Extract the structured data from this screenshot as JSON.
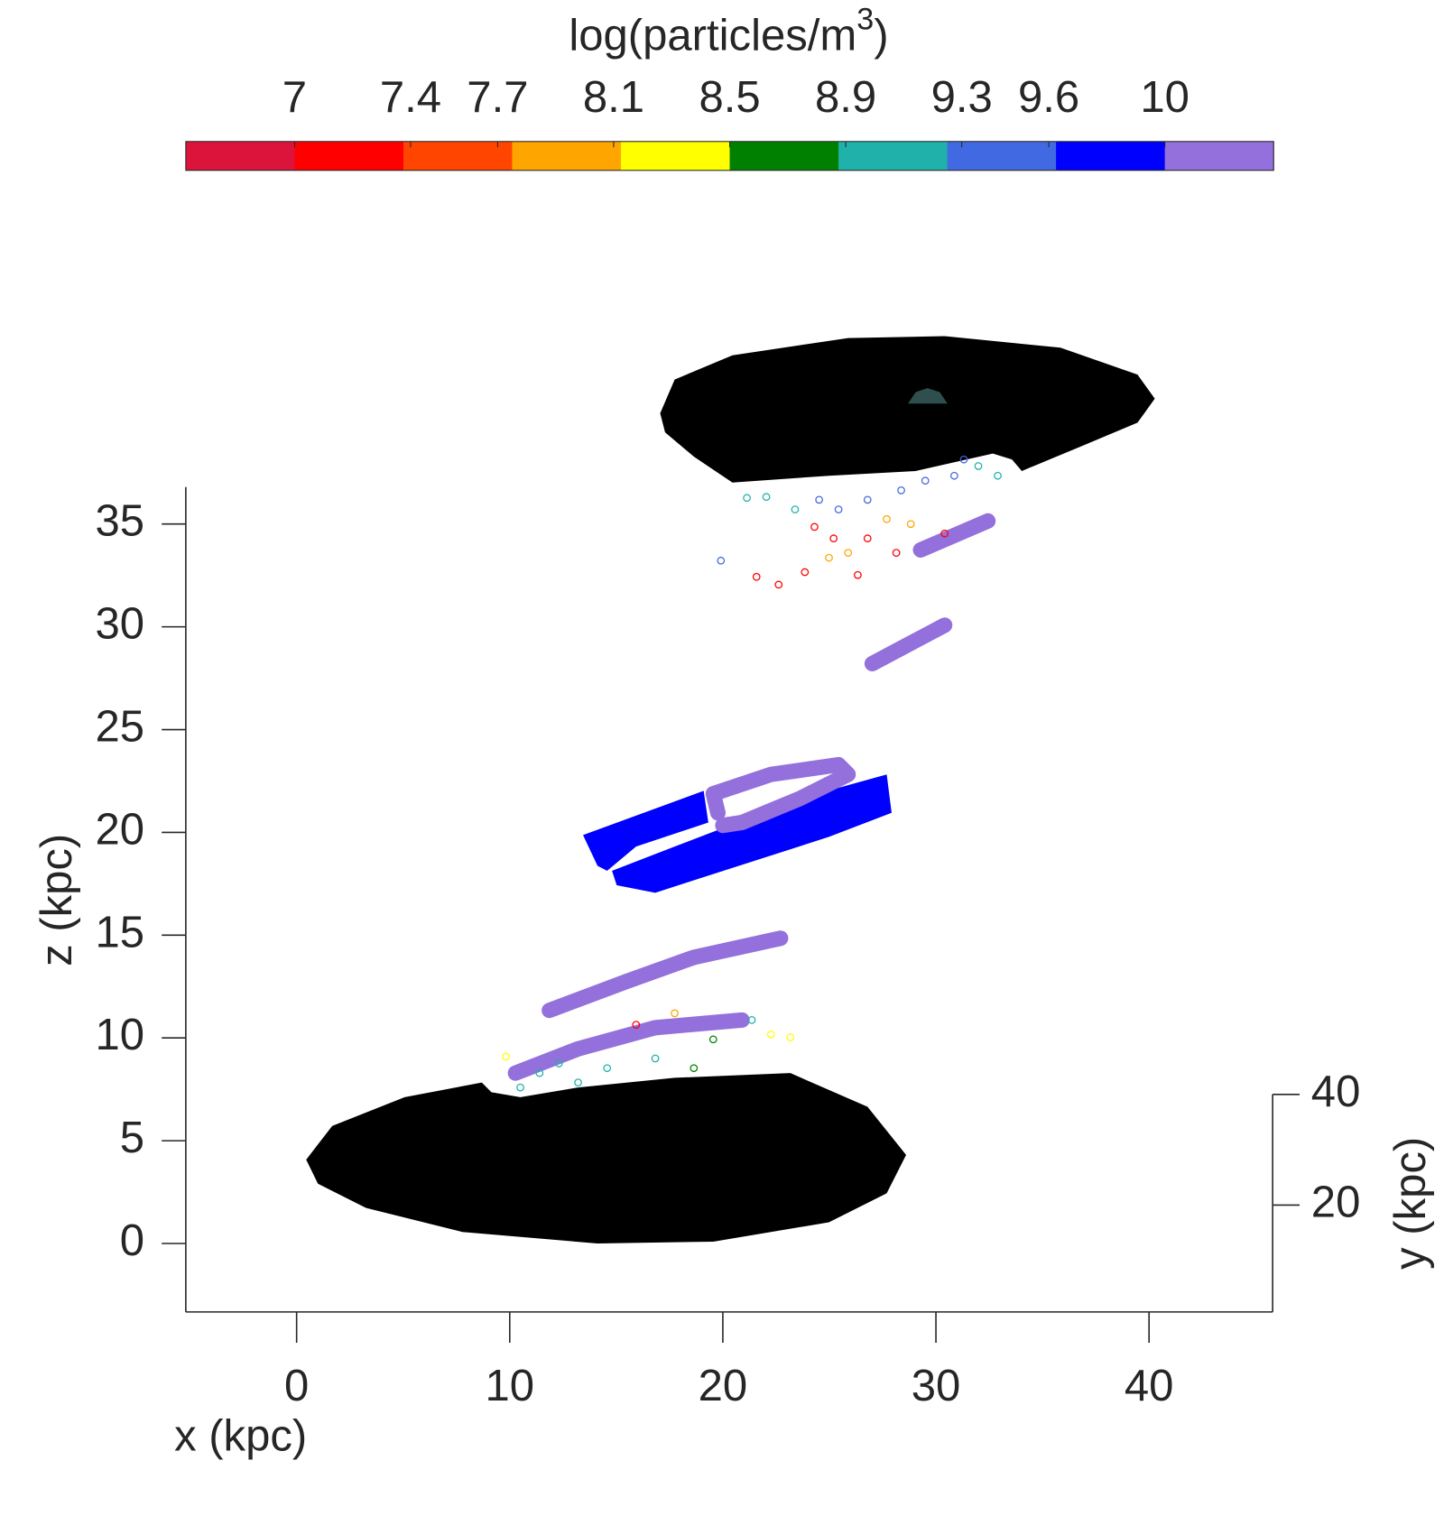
{
  "chart_data": {
    "type": "scatter3",
    "xlabel": "x (kpc)",
    "ylabel": "y (kpc)",
    "zlabel": "z (kpc)",
    "xlim": [
      -5.2,
      45.8
    ],
    "xticks": [
      0,
      10,
      20,
      30,
      40
    ],
    "ylim": [
      0.7,
      40
    ],
    "yticks": [
      20,
      40
    ],
    "zlim": [
      -3.33,
      36.8
    ],
    "zticks": [
      0,
      5,
      10,
      15,
      20,
      25,
      30,
      35
    ],
    "colorbar": {
      "label": [
        "log(particles/m",
        "3",
        ")"
      ],
      "clim": [
        6.625,
        10.375
      ],
      "ticks": [
        7,
        7.4,
        7.7,
        8.1,
        8.5,
        8.9,
        9.3,
        9.6,
        10
      ],
      "colors": [
        "#dc143c",
        "#ff0000",
        "#ff4500",
        "#ffa500",
        "#ffff00",
        "#008000",
        "#20b2aa",
        "#4169e1",
        "#0000ff",
        "#9370db"
      ]
    },
    "series": [
      {
        "style": "region",
        "color": "#000000",
        "x": [
          0.45,
          1.67,
          5.07,
          8.69,
          9.14,
          10.5,
          13.21,
          17.74,
          23.17,
          26.79,
          28.6,
          27.69,
          24.98,
          19.55,
          14.12,
          7.78,
          3.26,
          1.0
        ],
        "z": [
          4.08,
          5.72,
          7.12,
          7.83,
          7.36,
          7.12,
          7.59,
          8.06,
          8.29,
          6.65,
          4.31,
          2.44,
          1.03,
          0.09,
          0,
          0.56,
          1.73,
          2.91
        ]
      },
      {
        "style": "region",
        "color": "#000000",
        "x": [
          17.06,
          17.74,
          20.45,
          25.88,
          30.41,
          35.84,
          39.46,
          40.27,
          39.46,
          36.74,
          34.03,
          33.57,
          32.67,
          29.05,
          24.98,
          20.45,
          18.64,
          17.29
        ],
        "z": [
          40.39,
          42.03,
          43.21,
          44.05,
          44.14,
          43.58,
          42.27,
          41.1,
          39.93,
          38.75,
          37.58,
          38.14,
          38.43,
          37.58,
          37.35,
          37.02,
          38.28,
          39.46
        ]
      },
      {
        "style": "region",
        "color": "#2f4f4f",
        "x": [
          28.69,
          29.05,
          29.6,
          30.18,
          30.54
        ],
        "z": [
          40.86,
          41.42,
          41.61,
          41.42,
          40.86
        ]
      },
      {
        "style": "region",
        "color": "#0000ff",
        "x": [
          13.44,
          19.1,
          19.32,
          15.93,
          14.57,
          14.12
        ],
        "z": [
          19.87,
          22.02,
          20.48,
          19.31,
          18.13,
          18.37
        ]
      },
      {
        "style": "region",
        "color": "#0000ff",
        "x": [
          14.8,
          17.74,
          23.62,
          27.69,
          27.92,
          24.98,
          18.64,
          16.83,
          15.02
        ],
        "z": [
          18.13,
          19.31,
          21.65,
          22.82,
          20.95,
          19.78,
          17.67,
          17.06,
          17.43
        ]
      },
      {
        "style": "band",
        "color": "#9370db",
        "x": [
          29.28,
          32.44
        ],
        "z": [
          33.74,
          35.15
        ]
      },
      {
        "style": "band",
        "color": "#9370db",
        "x": [
          27.01,
          30.41
        ],
        "z": [
          28.21,
          30.08
        ]
      },
      {
        "style": "band",
        "color": "#9370db",
        "x": [
          19.77,
          19.55,
          22.26,
          25.43,
          25.88,
          23.62,
          20.9,
          20.0
        ],
        "z": [
          20.95,
          21.88,
          22.82,
          23.29,
          22.82,
          21.65,
          20.48,
          20.34
        ]
      },
      {
        "style": "band",
        "color": "#9370db",
        "x": [
          11.86,
          15.48,
          18.64,
          22.71
        ],
        "z": [
          11.34,
          12.75,
          13.92,
          14.85
        ]
      },
      {
        "style": "band",
        "color": "#9370db",
        "x": [
          10.27,
          13.21,
          16.83,
          20.9
        ],
        "z": [
          8.29,
          9.47,
          10.5,
          10.87
        ]
      },
      {
        "style": "points",
        "x": [
          21.13,
          22.04,
          24.52,
          25.43,
          26.79,
          28.37,
          29.5,
          30.86,
          31.31,
          31.99,
          32.9,
          27.69,
          28.82,
          30.41,
          24.3,
          25.2,
          26.79,
          28.14,
          24.98,
          25.88,
          23.85,
          22.62,
          21.58,
          26.33,
          19.91,
          23.39,
          11.4,
          13.21,
          14.57,
          15.93,
          17.74,
          19.55,
          18.64,
          21.36,
          22.26,
          23.17,
          9.82,
          10.5,
          12.31,
          16.83
        ],
        "z": [
          36.27,
          36.32,
          36.18,
          35.71,
          36.18,
          36.64,
          37.11,
          37.35,
          38.14,
          37.82,
          37.35,
          35.24,
          35.0,
          34.54,
          34.86,
          34.3,
          34.3,
          33.6,
          33.36,
          33.6,
          32.66,
          32.05,
          32.43,
          32.52,
          33.22,
          35.71,
          8.29,
          7.83,
          8.53,
          10.64,
          11.2,
          9.93,
          8.53,
          10.87,
          10.17,
          10.03,
          9.09,
          7.59,
          8.76,
          9.0
        ],
        "c": [
          9.1,
          9.1,
          9.4,
          9.4,
          9.4,
          9.4,
          9.4,
          9.4,
          9.4,
          9.1,
          9.1,
          7.9,
          7.9,
          7.2,
          7.2,
          7.2,
          7.2,
          7.2,
          7.9,
          7.9,
          7.2,
          7.2,
          7.2,
          7.2,
          9.4,
          9.1,
          9.1,
          9.1,
          9.1,
          7.2,
          7.9,
          8.7,
          8.7,
          9.1,
          8.3,
          8.3,
          8.3,
          9.1,
          9.1,
          9.1
        ]
      }
    ]
  }
}
